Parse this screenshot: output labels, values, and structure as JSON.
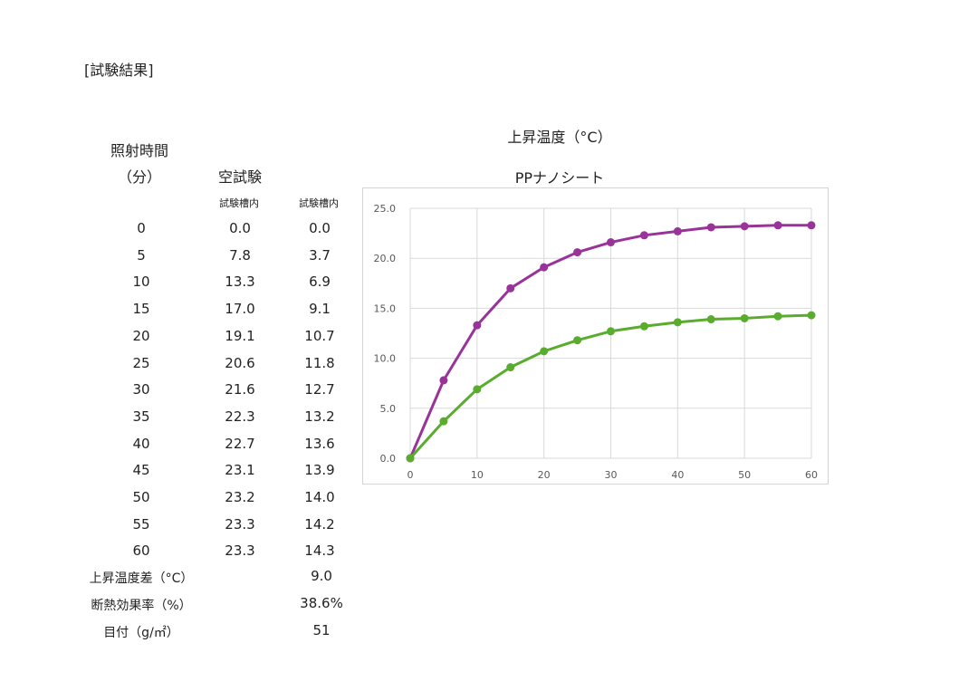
{
  "section_title": "[試験結果]",
  "table": {
    "col_time_header_1": "照射時間",
    "col_time_header_2": "（分）",
    "col_blank_header": "空試験",
    "col_blank_sub": "試験槽内",
    "col_sample_sub": "試験槽内",
    "rows": [
      {
        "time": "0",
        "blank": "0.0",
        "sample": "0.0"
      },
      {
        "time": "5",
        "blank": "7.8",
        "sample": "3.7"
      },
      {
        "time": "10",
        "blank": "13.3",
        "sample": "6.9"
      },
      {
        "time": "15",
        "blank": "17.0",
        "sample": "9.1"
      },
      {
        "time": "20",
        "blank": "19.1",
        "sample": "10.7"
      },
      {
        "time": "25",
        "blank": "20.6",
        "sample": "11.8"
      },
      {
        "time": "30",
        "blank": "21.6",
        "sample": "12.7"
      },
      {
        "time": "35",
        "blank": "22.3",
        "sample": "13.2"
      },
      {
        "time": "40",
        "blank": "22.7",
        "sample": "13.6"
      },
      {
        "time": "45",
        "blank": "23.1",
        "sample": "13.9"
      },
      {
        "time": "50",
        "blank": "23.2",
        "sample": "14.0"
      },
      {
        "time": "55",
        "blank": "23.3",
        "sample": "14.2"
      },
      {
        "time": "60",
        "blank": "23.3",
        "sample": "14.3"
      }
    ],
    "summary": [
      {
        "label": "上昇温度差（°C）",
        "value": "9.0"
      },
      {
        "label": "断熱効果率（%）",
        "value": "38.6%"
      },
      {
        "label": "目付（g/㎡）",
        "value": "51"
      }
    ]
  },
  "chart_title": "上昇温度（°C）",
  "chart_data": {
    "type": "line",
    "title": "PPナノシート",
    "xlabel": "",
    "ylabel": "",
    "x": [
      0,
      5,
      10,
      15,
      20,
      25,
      30,
      35,
      40,
      45,
      50,
      55,
      60
    ],
    "xticks": [
      "0",
      "10",
      "20",
      "30",
      "40",
      "50",
      "60"
    ],
    "yticks": [
      "0.0",
      "5.0",
      "10.0",
      "15.0",
      "20.0",
      "25.0"
    ],
    "xlim": [
      0,
      60
    ],
    "ylim": [
      0,
      25
    ],
    "grid": true,
    "series": [
      {
        "values": [
          0.0,
          7.8,
          13.3,
          17.0,
          19.1,
          20.6,
          21.6,
          22.3,
          22.7,
          23.1,
          23.2,
          23.3,
          23.3
        ],
        "color": "#993399"
      },
      {
        "values": [
          0.0,
          3.7,
          6.9,
          9.1,
          10.7,
          11.8,
          12.7,
          13.2,
          13.6,
          13.9,
          14.0,
          14.2,
          14.3
        ],
        "color": "#5aac2e"
      }
    ]
  }
}
